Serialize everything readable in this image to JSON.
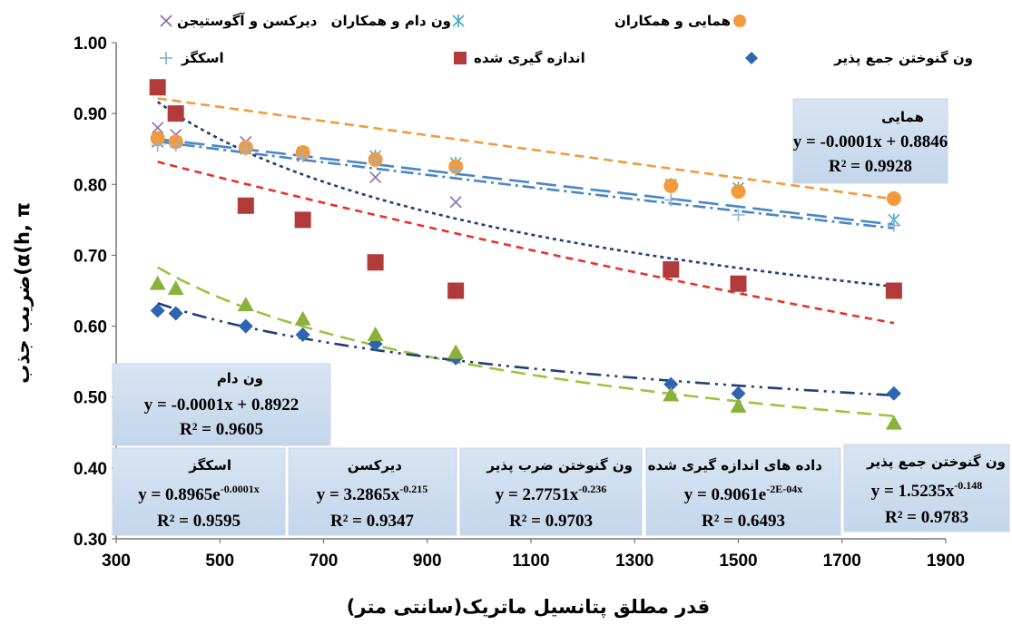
{
  "chart_data": {
    "type": "scatter",
    "xlabel": "قدر مطلق پتانسیل ماتریک(سانتی متر)",
    "ylabel": "ضریب جذب(α(h, π",
    "xlim": [
      300,
      1900
    ],
    "ylim": [
      0.3,
      1.0
    ],
    "x_ticks": [
      "300",
      "500",
      "700",
      "900",
      "1100",
      "1300",
      "1500",
      "1700",
      "1900"
    ],
    "y_ticks": [
      "0.30",
      "0.40",
      "0.50",
      "0.60",
      "0.70",
      "0.80",
      "0.90",
      "1.00"
    ],
    "grid": false,
    "legend_position": "top",
    "series": [
      {
        "name": "دیرکسن و آگوستیجن",
        "marker": "x",
        "color": "#8e6bb0",
        "x": [
          380,
          415,
          550,
          660,
          800,
          955,
          1370,
          1500,
          1800
        ],
        "y": [
          0.88,
          0.87,
          0.86,
          0.84,
          0.81,
          0.775,
          0.68,
          0.655,
          0.65
        ]
      },
      {
        "name": "ون دام و همکاران",
        "marker": "asterisk",
        "color": "#4bacc6",
        "x": [
          380,
          415,
          550,
          660,
          800,
          955,
          1370,
          1500,
          1800
        ],
        "y": [
          0.86,
          0.86,
          0.85,
          0.845,
          0.84,
          0.83,
          0.8,
          0.795,
          0.75
        ]
      },
      {
        "name": "همایی و همکاران",
        "marker": "circle",
        "color": "#f39a3c",
        "x": [
          380,
          415,
          550,
          660,
          800,
          955,
          1370,
          1500,
          1800
        ],
        "y": [
          0.865,
          0.86,
          0.852,
          0.845,
          0.835,
          0.825,
          0.798,
          0.79,
          0.78
        ]
      },
      {
        "name": "اسکگز",
        "marker": "plus",
        "color": "#8fb3dc",
        "x": [
          380,
          415,
          550,
          660,
          800,
          955,
          1370,
          1500,
          1800
        ],
        "y": [
          0.855,
          0.855,
          0.85,
          0.84,
          0.835,
          0.82,
          0.778,
          0.757,
          0.742
        ]
      },
      {
        "name": "اندازه گیری شده",
        "marker": "square",
        "color": "#b13a3a",
        "x": [
          380,
          415,
          550,
          660,
          800,
          955,
          1370,
          1500,
          1800
        ],
        "y": [
          0.937,
          0.9,
          0.77,
          0.75,
          0.69,
          0.65,
          0.68,
          0.66,
          0.65
        ]
      },
      {
        "name": "ون گنوختن جمع پذیر",
        "marker": "diamond",
        "color": "#2e64b0",
        "x": [
          380,
          415,
          550,
          660,
          800,
          955,
          1370,
          1500,
          1800
        ],
        "y": [
          0.622,
          0.618,
          0.6,
          0.588,
          0.575,
          0.555,
          0.518,
          0.505,
          0.505
        ]
      },
      {
        "name": "ون گنوختن ضرب پذیر",
        "marker": "triangle",
        "color": "#8ab23b",
        "x": [
          380,
          415,
          550,
          660,
          800,
          955,
          1370,
          1500,
          1800
        ],
        "y": [
          0.66,
          0.653,
          0.63,
          0.61,
          0.588,
          0.563,
          0.503,
          0.487,
          0.463
        ]
      }
    ],
    "trendlines": [
      {
        "label": "همایی",
        "equation": "y = -0.0001x + 0.8846",
        "r2": "R² = 0.9928",
        "color": "#f39a3c",
        "dash": "10,6"
      },
      {
        "label": "ون دام",
        "equation": "y = -0.0001x + 0.8922",
        "r2": "R² = 0.9605",
        "color": "#4a86c5",
        "dash": "22,8"
      },
      {
        "label": "اسکگز",
        "eq_main": "y = 0.8965e",
        "eq_exp": "-0.0001x",
        "r2": "R² = 0.9595",
        "color": "#4a86c5",
        "dash": "14,5,3,5"
      },
      {
        "label": "دیرکسن",
        "eq_main": "y = 3.2865x",
        "eq_exp": "-0.215",
        "r2": "R² = 0.9347",
        "color": "#1f3f77",
        "dash": "4,4"
      },
      {
        "label": "ون گنوختن ضرب پذیر",
        "eq_main": "y = 2.7751x",
        "eq_exp": "-0.236",
        "r2": "R² = 0.9703",
        "color": "#9bc33f",
        "dash": "16,8"
      },
      {
        "label": "داده های اندازه گیری شده",
        "eq_main": "y = 0.9061e",
        "eq_exp": "-2E-04x",
        "r2": "R² = 0.6493",
        "color": "#e8312a",
        "dash": "8,6"
      },
      {
        "label": "ون گنوختن جمع پذیر",
        "eq_main": "y = 1.5235x",
        "eq_exp": "-0.148",
        "r2": "R² = 0.9783",
        "color": "#1f3f77",
        "dash": "16,6,3,6,3,6"
      }
    ]
  }
}
